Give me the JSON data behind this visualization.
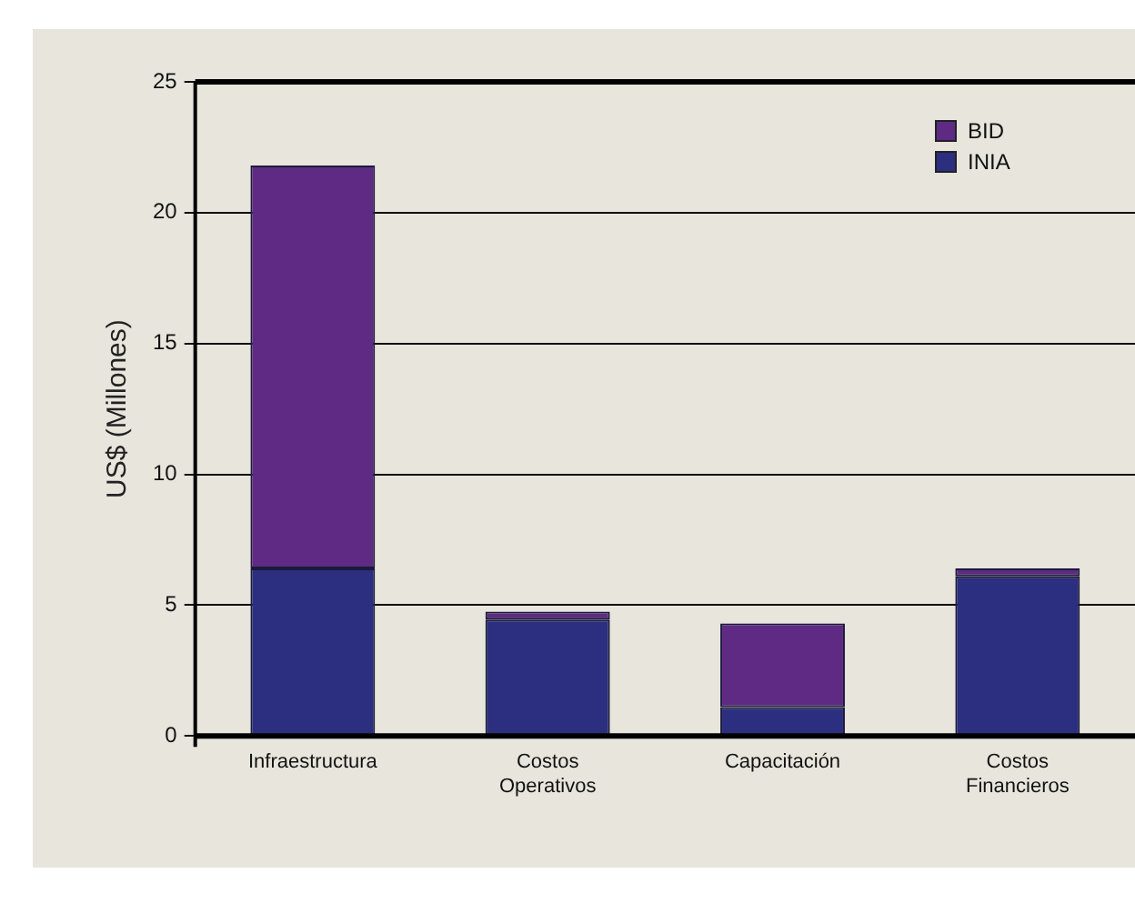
{
  "chart_data": {
    "type": "bar",
    "stacked": true,
    "ylabel": "US$ (Millones)",
    "categories": [
      "Infraestructura",
      "Costos Operativos",
      "Capacitación",
      "Costos Financieros"
    ],
    "series": [
      {
        "name": "INIA",
        "color": "#2c2f7f",
        "values": [
          6.4,
          4.45,
          1.1,
          6.1
        ]
      },
      {
        "name": "BID",
        "color": "#5e2a84",
        "values": [
          15.4,
          0.3,
          3.2,
          0.3
        ]
      }
    ],
    "ylim": [
      0,
      25
    ],
    "yticks": [
      0,
      5,
      10,
      15,
      20,
      25
    ],
    "grid": "y",
    "legend": "top right"
  }
}
